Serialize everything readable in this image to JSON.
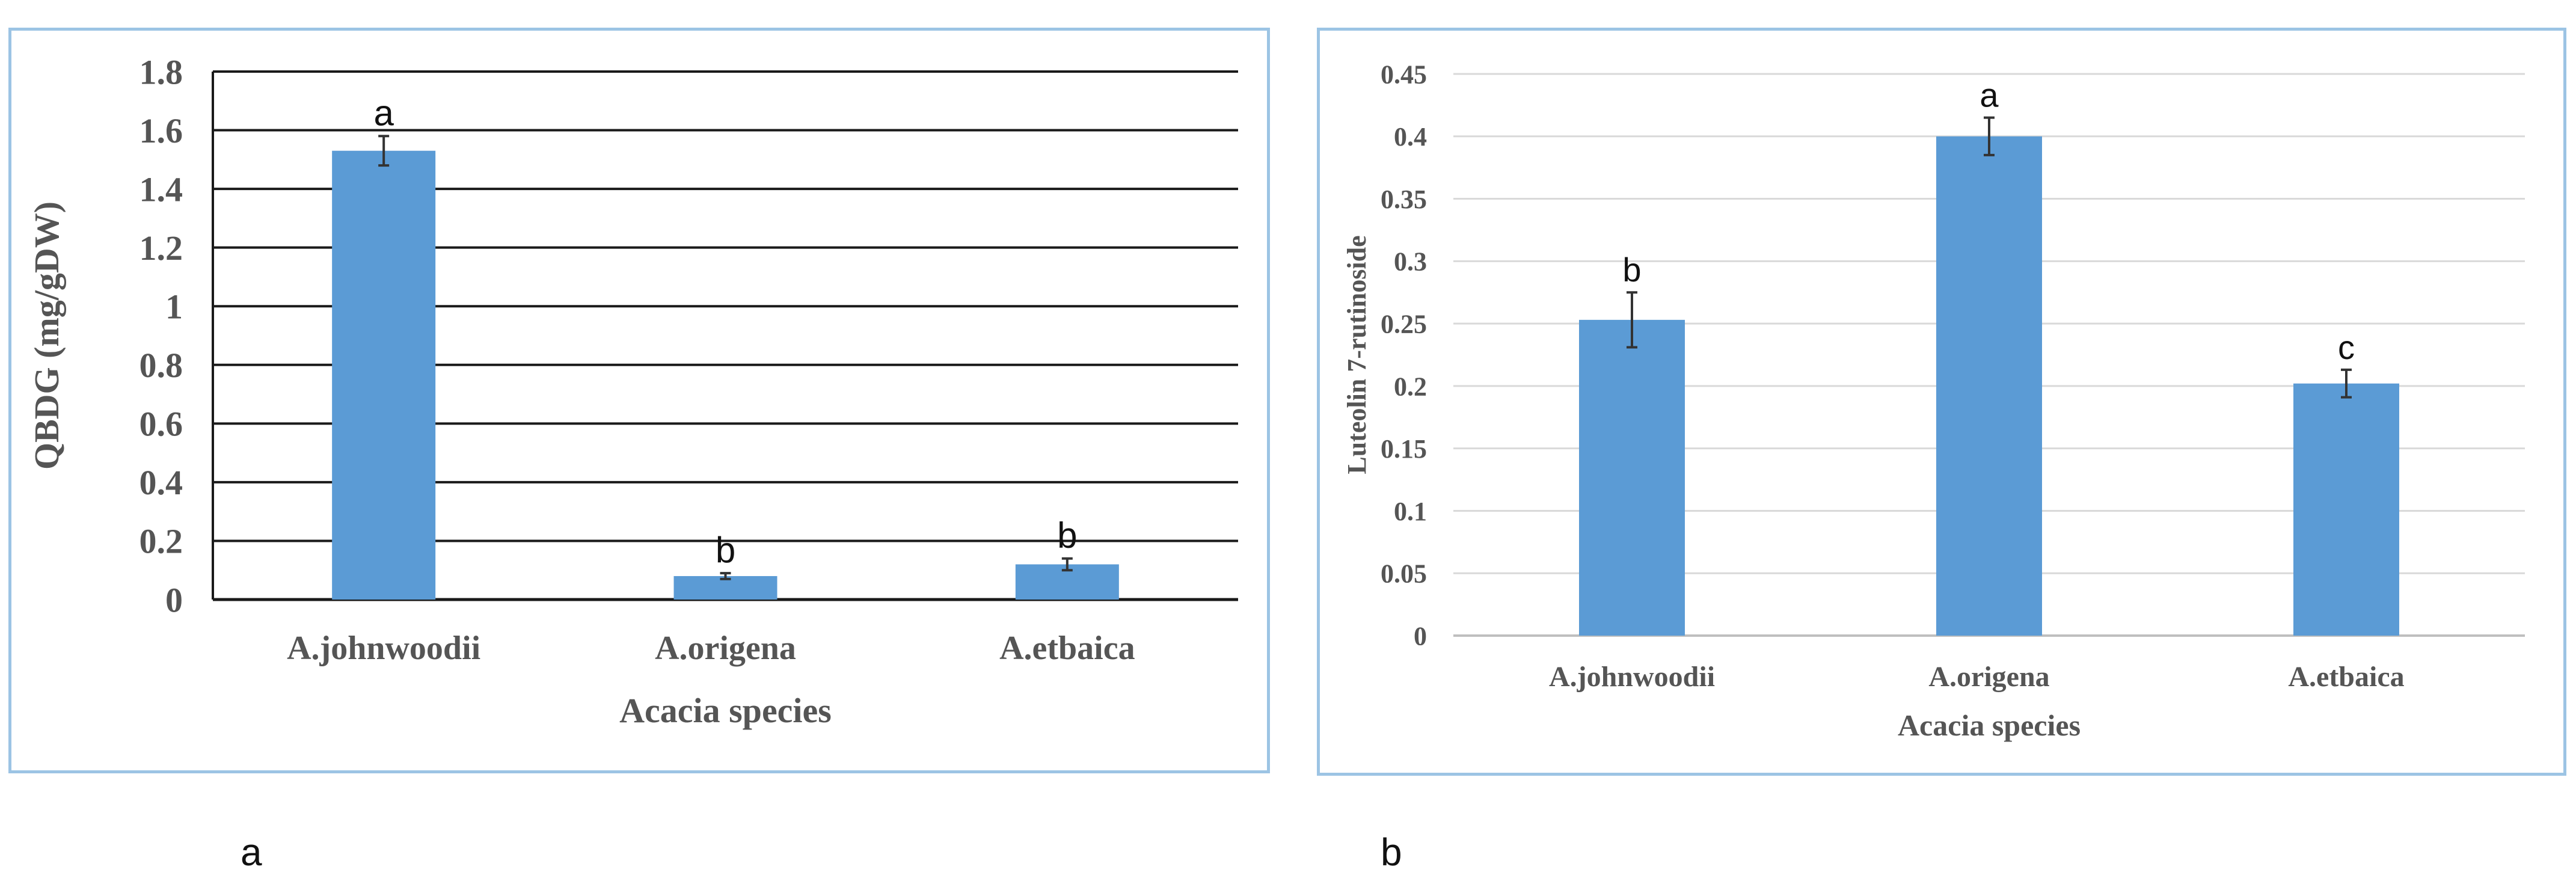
{
  "chart_data": [
    {
      "id": "a",
      "type": "bar",
      "categories": [
        "A.johnwoodii",
        "A.origena",
        "A.etbaica"
      ],
      "values": [
        1.53,
        0.08,
        0.12
      ],
      "errors": [
        0.05,
        0.01,
        0.02
      ],
      "significance_letters": [
        "a",
        "b",
        "b"
      ],
      "title": "",
      "xlabel": "Acacia species",
      "ylabel": "QBDG (mg/gDW)",
      "ylim": [
        0,
        1.8
      ],
      "yticks": [
        0,
        0.2,
        0.4,
        0.6,
        0.8,
        1,
        1.2,
        1.4,
        1.6,
        1.8
      ],
      "ytick_labels": [
        "0",
        "0.2",
        "0.4",
        "0.6",
        "0.8",
        "1",
        "1.2",
        "1.4",
        "1.6",
        "1.8"
      ],
      "grid": true,
      "bar_color": "#5b9bd5",
      "grid_color": "#1a1a1a"
    },
    {
      "id": "b",
      "type": "bar",
      "categories": [
        "A.johnwoodii",
        "A.origena",
        "A.etbaica"
      ],
      "values": [
        0.253,
        0.4,
        0.202
      ],
      "errors": [
        0.022,
        0.015,
        0.011
      ],
      "significance_letters": [
        "b",
        "a",
        "c"
      ],
      "title": "",
      "xlabel": "Acacia species",
      "ylabel": "Luteolin 7-rutinoside",
      "ylim": [
        0,
        0.45
      ],
      "yticks": [
        0,
        0.05,
        0.1,
        0.15,
        0.2,
        0.25,
        0.3,
        0.35,
        0.4,
        0.45
      ],
      "ytick_labels": [
        "0",
        "0.05",
        "0.1",
        "0.15",
        "0.2",
        "0.25",
        "0.3",
        "0.35",
        "0.4",
        "0.45"
      ],
      "grid": true,
      "bar_color": "#5b9bd5",
      "grid_color": "#d9d9d9"
    }
  ],
  "panel_labels": {
    "a": "a",
    "b": "b"
  }
}
